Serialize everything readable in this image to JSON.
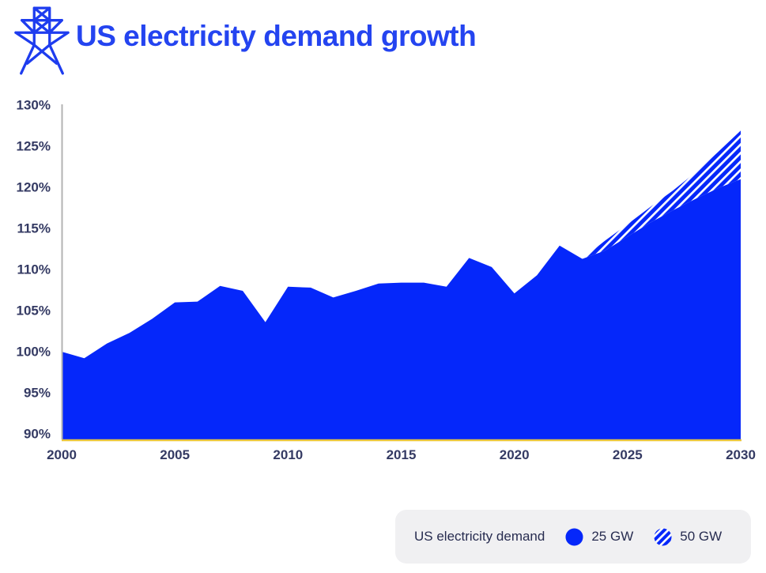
{
  "header": {
    "title": "US electricity demand growth",
    "icon": "transmission-tower-icon"
  },
  "colors": {
    "area_blue": "#0527fa",
    "title_blue": "#2444f0",
    "icon_blue": "#1e3cef",
    "axis_text": "#343a63",
    "legend_text": "#272c50",
    "axis_line_gray": "#b3b3b3",
    "baseline_yellow": "#e9c53e",
    "legend_bg": "#f0f0f2",
    "hatch_white": "#ffffff"
  },
  "legend": {
    "label": "US electricity demand",
    "items": [
      {
        "name": "25 GW",
        "style": "solid"
      },
      {
        "name": "50 GW",
        "style": "hatched"
      }
    ]
  },
  "chart_data": {
    "type": "area",
    "title": "US electricity demand growth",
    "xlabel": "",
    "ylabel": "",
    "ylim": [
      90,
      130
    ],
    "xlim": [
      2000,
      2030
    ],
    "grid": false,
    "legend_position": "bottom-right",
    "yticks": [
      "90%",
      "95%",
      "100%",
      "105%",
      "110%",
      "115%",
      "120%",
      "125%",
      "130%"
    ],
    "ytick_values": [
      90,
      95,
      100,
      105,
      110,
      115,
      120,
      125,
      130
    ],
    "xticks": [
      "2000",
      "2005",
      "2010",
      "2015",
      "2020",
      "2025",
      "2030"
    ],
    "xtick_values": [
      2000,
      2005,
      2010,
      2015,
      2020,
      2025,
      2030
    ],
    "x": [
      2000,
      2001,
      2002,
      2003,
      2004,
      2005,
      2006,
      2007,
      2008,
      2009,
      2010,
      2011,
      2012,
      2013,
      2014,
      2015,
      2016,
      2017,
      2018,
      2019,
      2020,
      2021,
      2022,
      2023,
      2024,
      2025,
      2026,
      2027,
      2028,
      2029,
      2030
    ],
    "series": [
      {
        "name": "25 GW",
        "style": "solid",
        "x_start": 2000,
        "values": [
          100,
          99.2,
          101,
          102.3,
          104,
          106,
          106.1,
          108,
          107.4,
          103.6,
          107.9,
          107.8,
          106.6,
          107.4,
          108.3,
          108.4,
          108.4,
          107.9,
          111.4,
          110.3,
          107.1,
          109.3,
          112.9,
          111.3,
          112.3,
          114,
          115.7,
          117.2,
          118.6,
          119.9,
          121
        ]
      },
      {
        "name": "50 GW",
        "style": "hatched",
        "x_start": 2023,
        "values": [
          111.3,
          113.5,
          115.5,
          117.6,
          119.6,
          121.8,
          124.3,
          126.9
        ]
      }
    ]
  }
}
